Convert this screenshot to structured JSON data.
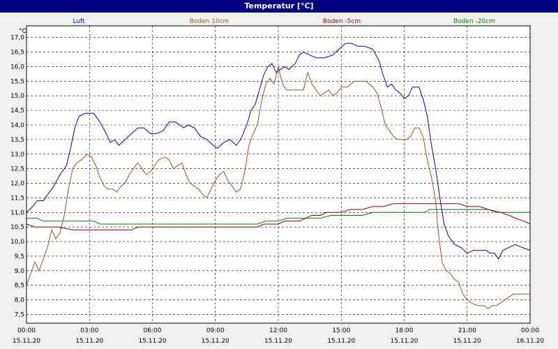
{
  "window": {
    "title": "Temperatur [°C]"
  },
  "chart_data": {
    "type": "line",
    "title": "Temperatur [°C]",
    "ylabel": "°C",
    "xlabel": "",
    "ylim": [
      7.2,
      17.4
    ],
    "xlim": [
      0,
      24
    ],
    "grid": true,
    "legend_position": "top",
    "y_ticks": [
      "7,5",
      "8,0",
      "8,5",
      "9,0",
      "9,5",
      "10,0",
      "10,5",
      "11,0",
      "11,5",
      "12,0",
      "12,5",
      "13,0",
      "13,5",
      "14,0",
      "14,5",
      "15,0",
      "15,5",
      "16,0",
      "16,5",
      "17,0"
    ],
    "x_ticks": [
      {
        "x": 0,
        "time": "00:00",
        "date": "15.11.20"
      },
      {
        "x": 3,
        "time": "03:00",
        "date": "15.11.20"
      },
      {
        "x": 6,
        "time": "06:00",
        "date": "15.11.20"
      },
      {
        "x": 9,
        "time": "09:00",
        "date": "15.11.20"
      },
      {
        "x": 12,
        "time": "12:00",
        "date": "15.11.20"
      },
      {
        "x": 15,
        "time": "15:00",
        "date": "15.11.20"
      },
      {
        "x": 18,
        "time": "18:00",
        "date": "15.11.20"
      },
      {
        "x": 21,
        "time": "21:00",
        "date": "15.11.20"
      },
      {
        "x": 24,
        "time": "00:00",
        "date": "16.11.20"
      }
    ],
    "series": [
      {
        "name": "Luft",
        "color": "#0000cc",
        "points": [
          [
            0,
            11.0
          ],
          [
            0.3,
            11.2
          ],
          [
            0.5,
            11.4
          ],
          [
            0.8,
            11.4
          ],
          [
            1.0,
            11.6
          ],
          [
            1.3,
            11.9
          ],
          [
            1.6,
            12.3
          ],
          [
            1.9,
            12.6
          ],
          [
            2.1,
            13.2
          ],
          [
            2.3,
            13.9
          ],
          [
            2.5,
            14.3
          ],
          [
            2.8,
            14.4
          ],
          [
            3.2,
            14.4
          ],
          [
            3.5,
            14.1
          ],
          [
            3.8,
            13.7
          ],
          [
            4.0,
            13.4
          ],
          [
            4.2,
            13.5
          ],
          [
            4.4,
            13.3
          ],
          [
            4.7,
            13.5
          ],
          [
            5.0,
            13.7
          ],
          [
            5.3,
            13.9
          ],
          [
            5.6,
            13.9
          ],
          [
            5.9,
            13.7
          ],
          [
            6.2,
            13.7
          ],
          [
            6.5,
            13.8
          ],
          [
            6.8,
            14.1
          ],
          [
            7.1,
            14.1
          ],
          [
            7.3,
            14.0
          ],
          [
            7.5,
            13.9
          ],
          [
            7.7,
            14.0
          ],
          [
            8.0,
            13.9
          ],
          [
            8.3,
            13.6
          ],
          [
            8.6,
            13.5
          ],
          [
            8.9,
            13.3
          ],
          [
            9.1,
            13.2
          ],
          [
            9.4,
            13.4
          ],
          [
            9.7,
            13.5
          ],
          [
            10.0,
            13.3
          ],
          [
            10.2,
            13.5
          ],
          [
            10.5,
            14.0
          ],
          [
            10.7,
            14.5
          ],
          [
            10.9,
            14.7
          ],
          [
            11.1,
            15.2
          ],
          [
            11.3,
            15.7
          ],
          [
            11.5,
            16.0
          ],
          [
            11.7,
            16.1
          ],
          [
            11.9,
            15.8
          ],
          [
            12.1,
            15.9
          ],
          [
            12.3,
            16.0
          ],
          [
            12.5,
            15.9
          ],
          [
            12.8,
            16.1
          ],
          [
            13.0,
            16.4
          ],
          [
            13.2,
            16.5
          ],
          [
            13.5,
            16.4
          ],
          [
            13.8,
            16.3
          ],
          [
            14.2,
            16.3
          ],
          [
            14.6,
            16.4
          ],
          [
            14.9,
            16.6
          ],
          [
            15.2,
            16.8
          ],
          [
            15.5,
            16.8
          ],
          [
            15.8,
            16.7
          ],
          [
            16.1,
            16.7
          ],
          [
            16.5,
            16.6
          ],
          [
            16.8,
            16.2
          ],
          [
            17.0,
            15.7
          ],
          [
            17.2,
            15.3
          ],
          [
            17.4,
            15.4
          ],
          [
            17.6,
            15.2
          ],
          [
            17.8,
            15.1
          ],
          [
            18.0,
            14.9
          ],
          [
            18.2,
            15.0
          ],
          [
            18.4,
            15.3
          ],
          [
            18.7,
            15.3
          ],
          [
            18.9,
            14.9
          ],
          [
            19.1,
            14.3
          ],
          [
            19.3,
            13.3
          ],
          [
            19.5,
            12.5
          ],
          [
            19.7,
            11.5
          ],
          [
            19.9,
            10.6
          ],
          [
            20.1,
            10.2
          ],
          [
            20.4,
            9.9
          ],
          [
            20.7,
            9.8
          ],
          [
            21.0,
            9.6
          ],
          [
            21.3,
            9.7
          ],
          [
            21.6,
            9.7
          ],
          [
            21.9,
            9.7
          ],
          [
            22.1,
            9.6
          ],
          [
            22.3,
            9.6
          ],
          [
            22.5,
            9.4
          ],
          [
            22.7,
            9.7
          ],
          [
            23.0,
            9.8
          ],
          [
            23.3,
            9.9
          ],
          [
            23.6,
            9.8
          ],
          [
            24.0,
            9.7
          ]
        ]
      },
      {
        "name": "Boden 10cm",
        "color": "#a0521a",
        "points": [
          [
            0,
            8.5
          ],
          [
            0.2,
            8.9
          ],
          [
            0.4,
            9.3
          ],
          [
            0.6,
            9.0
          ],
          [
            0.8,
            9.4
          ],
          [
            1.0,
            9.8
          ],
          [
            1.2,
            10.4
          ],
          [
            1.4,
            10.1
          ],
          [
            1.6,
            10.3
          ],
          [
            1.8,
            10.9
          ],
          [
            2.0,
            11.8
          ],
          [
            2.2,
            12.5
          ],
          [
            2.4,
            12.7
          ],
          [
            2.6,
            12.8
          ],
          [
            2.9,
            13.0
          ],
          [
            3.1,
            12.9
          ],
          [
            3.3,
            12.6
          ],
          [
            3.5,
            12.2
          ],
          [
            3.7,
            11.9
          ],
          [
            3.9,
            11.8
          ],
          [
            4.1,
            11.8
          ],
          [
            4.3,
            11.7
          ],
          [
            4.5,
            11.9
          ],
          [
            4.7,
            12.0
          ],
          [
            4.9,
            12.3
          ],
          [
            5.1,
            12.5
          ],
          [
            5.3,
            12.7
          ],
          [
            5.5,
            12.5
          ],
          [
            5.7,
            12.3
          ],
          [
            5.9,
            12.4
          ],
          [
            6.1,
            12.6
          ],
          [
            6.3,
            12.8
          ],
          [
            6.6,
            12.9
          ],
          [
            6.8,
            12.8
          ],
          [
            7.0,
            12.5
          ],
          [
            7.2,
            12.6
          ],
          [
            7.4,
            12.7
          ],
          [
            7.6,
            12.3
          ],
          [
            7.8,
            12.0
          ],
          [
            8.0,
            11.9
          ],
          [
            8.2,
            11.8
          ],
          [
            8.4,
            11.6
          ],
          [
            8.6,
            11.5
          ],
          [
            8.8,
            11.8
          ],
          [
            9.0,
            12.1
          ],
          [
            9.2,
            12.3
          ],
          [
            9.4,
            12.4
          ],
          [
            9.6,
            12.1
          ],
          [
            9.8,
            11.9
          ],
          [
            10.0,
            11.7
          ],
          [
            10.2,
            11.8
          ],
          [
            10.4,
            12.4
          ],
          [
            10.6,
            13.3
          ],
          [
            10.8,
            13.7
          ],
          [
            11.0,
            14.0
          ],
          [
            11.2,
            14.8
          ],
          [
            11.4,
            15.4
          ],
          [
            11.6,
            15.6
          ],
          [
            11.8,
            15.4
          ],
          [
            12.0,
            16.0
          ],
          [
            12.2,
            15.4
          ],
          [
            12.4,
            15.2
          ],
          [
            12.6,
            15.2
          ],
          [
            12.9,
            15.2
          ],
          [
            13.2,
            15.2
          ],
          [
            13.4,
            15.8
          ],
          [
            13.6,
            15.4
          ],
          [
            13.8,
            15.2
          ],
          [
            14.0,
            15.0
          ],
          [
            14.2,
            15.1
          ],
          [
            14.4,
            15.2
          ],
          [
            14.6,
            15.0
          ],
          [
            14.8,
            15.1
          ],
          [
            15.0,
            15.3
          ],
          [
            15.3,
            15.3
          ],
          [
            15.6,
            15.5
          ],
          [
            15.9,
            15.5
          ],
          [
            16.2,
            15.5
          ],
          [
            16.5,
            15.3
          ],
          [
            16.7,
            15.1
          ],
          [
            16.9,
            14.6
          ],
          [
            17.1,
            14.0
          ],
          [
            17.3,
            13.8
          ],
          [
            17.5,
            13.6
          ],
          [
            17.7,
            13.5
          ],
          [
            17.9,
            13.5
          ],
          [
            18.1,
            13.5
          ],
          [
            18.3,
            13.6
          ],
          [
            18.5,
            13.9
          ],
          [
            18.7,
            13.9
          ],
          [
            18.9,
            13.6
          ],
          [
            19.1,
            12.8
          ],
          [
            19.3,
            12.2
          ],
          [
            19.5,
            11.4
          ],
          [
            19.6,
            10.5
          ],
          [
            19.8,
            9.3
          ],
          [
            20.0,
            9.0
          ],
          [
            20.2,
            8.9
          ],
          [
            20.4,
            8.7
          ],
          [
            20.6,
            8.6
          ],
          [
            20.8,
            8.2
          ],
          [
            21.0,
            8.0
          ],
          [
            21.2,
            7.9
          ],
          [
            21.5,
            7.8
          ],
          [
            21.8,
            7.8
          ],
          [
            22.0,
            7.7
          ],
          [
            22.2,
            7.8
          ],
          [
            22.4,
            7.8
          ],
          [
            22.6,
            7.9
          ],
          [
            22.8,
            8.0
          ],
          [
            23.0,
            8.1
          ],
          [
            23.2,
            8.2
          ],
          [
            23.5,
            8.2
          ],
          [
            23.8,
            8.2
          ],
          [
            24.0,
            8.2
          ]
        ]
      },
      {
        "name": "Boden -5cm",
        "color": "#8b0000",
        "points": [
          [
            0,
            10.6
          ],
          [
            0.4,
            10.5
          ],
          [
            1.5,
            10.5
          ],
          [
            2.2,
            10.4
          ],
          [
            5.0,
            10.4
          ],
          [
            5.3,
            10.5
          ],
          [
            11.0,
            10.5
          ],
          [
            11.3,
            10.6
          ],
          [
            12.0,
            10.6
          ],
          [
            12.3,
            10.7
          ],
          [
            13.0,
            10.7
          ],
          [
            13.3,
            10.8
          ],
          [
            13.6,
            10.9
          ],
          [
            14.0,
            10.9
          ],
          [
            14.3,
            11.0
          ],
          [
            15.0,
            11.0
          ],
          [
            15.4,
            11.1
          ],
          [
            16.0,
            11.1
          ],
          [
            16.5,
            11.2
          ],
          [
            17.0,
            11.2
          ],
          [
            17.5,
            11.3
          ],
          [
            18.0,
            11.3
          ],
          [
            19.0,
            11.3
          ],
          [
            20.0,
            11.3
          ],
          [
            20.6,
            11.3
          ],
          [
            21.0,
            11.2
          ],
          [
            21.6,
            11.2
          ],
          [
            22.0,
            11.1
          ],
          [
            22.6,
            11.0
          ],
          [
            23.0,
            10.9
          ],
          [
            23.3,
            10.8
          ],
          [
            23.7,
            10.7
          ],
          [
            24.0,
            10.6
          ]
        ]
      },
      {
        "name": "Boden -20cm",
        "color": "#008000",
        "points": [
          [
            0,
            10.8
          ],
          [
            0.5,
            10.8
          ],
          [
            0.8,
            10.7
          ],
          [
            3.2,
            10.7
          ],
          [
            3.5,
            10.6
          ],
          [
            11.0,
            10.6
          ],
          [
            11.4,
            10.7
          ],
          [
            12.0,
            10.7
          ],
          [
            12.4,
            10.8
          ],
          [
            14.0,
            10.8
          ],
          [
            14.5,
            10.9
          ],
          [
            16.0,
            10.9
          ],
          [
            16.5,
            11.0
          ],
          [
            17.0,
            11.0
          ],
          [
            19.0,
            11.0
          ],
          [
            19.2,
            11.1
          ],
          [
            20.0,
            11.1
          ],
          [
            22.0,
            11.1
          ],
          [
            22.4,
            11.0
          ],
          [
            24.0,
            11.0
          ]
        ]
      }
    ]
  }
}
